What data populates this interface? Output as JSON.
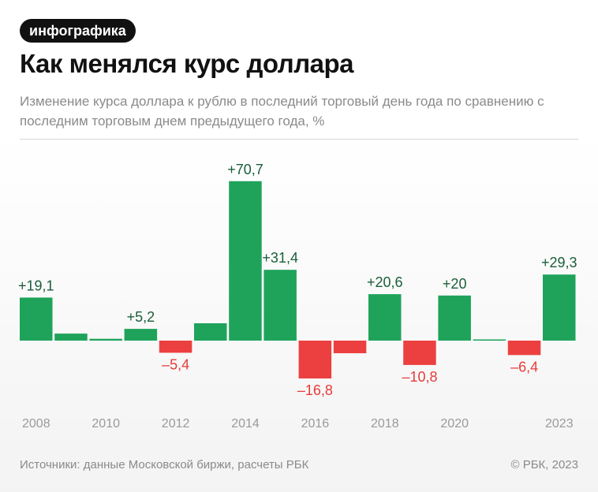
{
  "badge": "инфографика",
  "title": "Как менялся курс доллара",
  "subtitle": "Изменение курса доллара к рублю в последний торговый день года по сравнению с последним торговым днем предыдущего года, %",
  "footer": {
    "source": "Источники: данные Московской биржи, расчеты РБК",
    "copyright": "© РБК, 2023"
  },
  "colors": {
    "positive": "#1fa35b",
    "negative": "#ec4040",
    "positive_label": "#1a5e3b",
    "negative_label": "#e83a3a",
    "axis_label": "#9a9a9a"
  },
  "chart_data": {
    "type": "bar",
    "title": "Как менялся курс доллара",
    "ylabel": "%",
    "ylim": [
      -20,
      75
    ],
    "categories": [
      "2008",
      "2009",
      "2010",
      "2011",
      "2012",
      "2013",
      "2014",
      "2015",
      "2016",
      "2017",
      "2018",
      "2019",
      "2020",
      "2021",
      "2022",
      "2023"
    ],
    "values": [
      19.1,
      3.1,
      0.8,
      5.2,
      -5.4,
      7.7,
      70.7,
      31.4,
      -16.8,
      -5.6,
      20.6,
      -10.8,
      20.0,
      0.5,
      -6.4,
      29.3
    ],
    "data_labels": [
      "+19,1",
      "",
      "",
      "+5,2",
      "–5,4",
      "",
      "+70,7",
      "+31,4",
      "–16,8",
      "",
      "+20,6",
      "–10,8",
      "+20",
      "",
      "–6,4",
      "+29,3"
    ],
    "tick_labels": [
      "2008",
      "",
      "2010",
      "",
      "2012",
      "",
      "2014",
      "",
      "2016",
      "",
      "2018",
      "",
      "2020",
      "",
      "",
      "2023"
    ]
  }
}
